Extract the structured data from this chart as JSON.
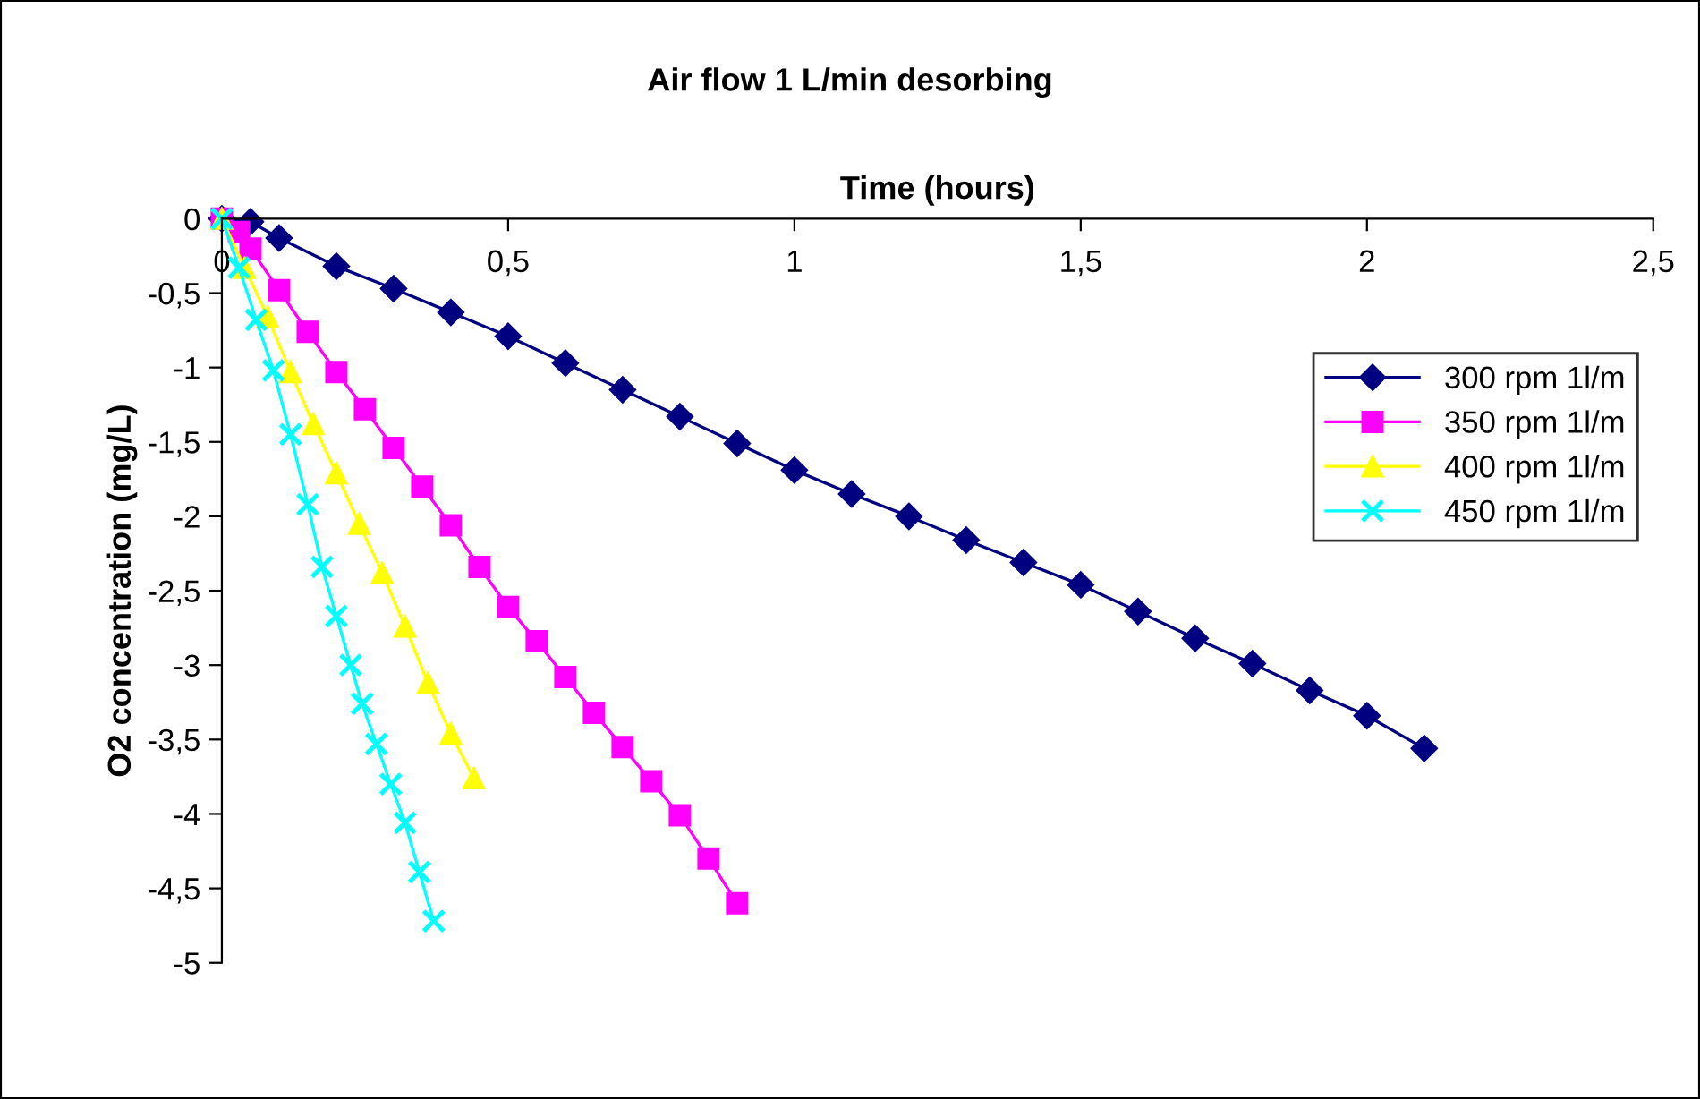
{
  "chart_data": {
    "type": "line",
    "title": "Air flow 1 L/min desorbing",
    "xlabel": "Time (hours)",
    "ylabel": "O2 concentration (mg/L)",
    "xlim": [
      0,
      2.5
    ],
    "xticks": [
      0,
      {
        "value": 0.5,
        "label": "0,5"
      },
      1,
      {
        "value": 1.5,
        "label": "1,5"
      },
      2,
      {
        "value": 2.5,
        "label": "2,5"
      }
    ],
    "ylim": [
      -5,
      0
    ],
    "yticks": [
      0,
      {
        "value": -0.5,
        "label": "-0,5"
      },
      -1,
      {
        "value": -1.5,
        "label": "-1,5"
      },
      -2,
      {
        "value": -2.5,
        "label": "-2,5"
      },
      -3,
      {
        "value": -3.5,
        "label": "-3,5"
      },
      -4,
      {
        "value": -4.5,
        "label": "-4,5"
      },
      -5
    ],
    "grid": false,
    "legend": "right",
    "line_style": "solid",
    "series": [
      {
        "name": "300 rpm 1l/m",
        "color": "#000080",
        "marker": "diamond",
        "x": [
          0,
          0.05,
          0.1,
          0.2,
          0.3,
          0.4,
          0.5,
          0.6,
          0.7,
          0.8,
          0.9,
          1.0,
          1.1,
          1.2,
          1.3,
          1.4,
          1.5,
          1.6,
          1.7,
          1.8,
          1.9,
          2.0,
          2.1
        ],
        "values": [
          0,
          -0.02,
          -0.13,
          -0.32,
          -0.47,
          -0.63,
          -0.79,
          -0.97,
          -1.15,
          -1.33,
          -1.51,
          -1.69,
          -1.85,
          -2.0,
          -2.16,
          -2.31,
          -2.46,
          -2.64,
          -2.82,
          -2.99,
          -3.17,
          -3.34,
          -3.56
        ]
      },
      {
        "name": "350 rpm 1l/m",
        "color": "#ff00ff",
        "marker": "square",
        "x": [
          0,
          0.03,
          0.05,
          0.1,
          0.15,
          0.2,
          0.25,
          0.3,
          0.35,
          0.4,
          0.45,
          0.5,
          0.55,
          0.6,
          0.65,
          0.7,
          0.75,
          0.8,
          0.85,
          0.9
        ],
        "values": [
          0,
          -0.09,
          -0.2,
          -0.48,
          -0.76,
          -1.03,
          -1.28,
          -1.54,
          -1.8,
          -2.06,
          -2.34,
          -2.61,
          -2.84,
          -3.08,
          -3.32,
          -3.55,
          -3.78,
          -4.01,
          -4.3,
          -4.6
        ]
      },
      {
        "name": "400 rpm 1l/m",
        "color": "#ffff00",
        "marker": "triangle",
        "x": [
          0,
          0.04,
          0.08,
          0.12,
          0.16,
          0.2,
          0.24,
          0.28,
          0.32,
          0.36,
          0.4,
          0.44
        ],
        "values": [
          0,
          -0.33,
          -0.66,
          -1.03,
          -1.38,
          -1.71,
          -2.05,
          -2.38,
          -2.74,
          -3.12,
          -3.46,
          -3.76
        ]
      },
      {
        "name": "450 rpm 1l/m",
        "color": "#00ffff",
        "marker": "cross",
        "x": [
          0,
          0.03,
          0.06,
          0.09,
          0.12,
          0.15,
          0.175,
          0.2,
          0.225,
          0.245,
          0.27,
          0.295,
          0.32,
          0.345,
          0.37
        ],
        "values": [
          0,
          -0.33,
          -0.68,
          -1.02,
          -1.45,
          -1.92,
          -2.34,
          -2.67,
          -3.0,
          -3.26,
          -3.53,
          -3.8,
          -4.06,
          -4.39,
          -4.72
        ]
      }
    ]
  }
}
